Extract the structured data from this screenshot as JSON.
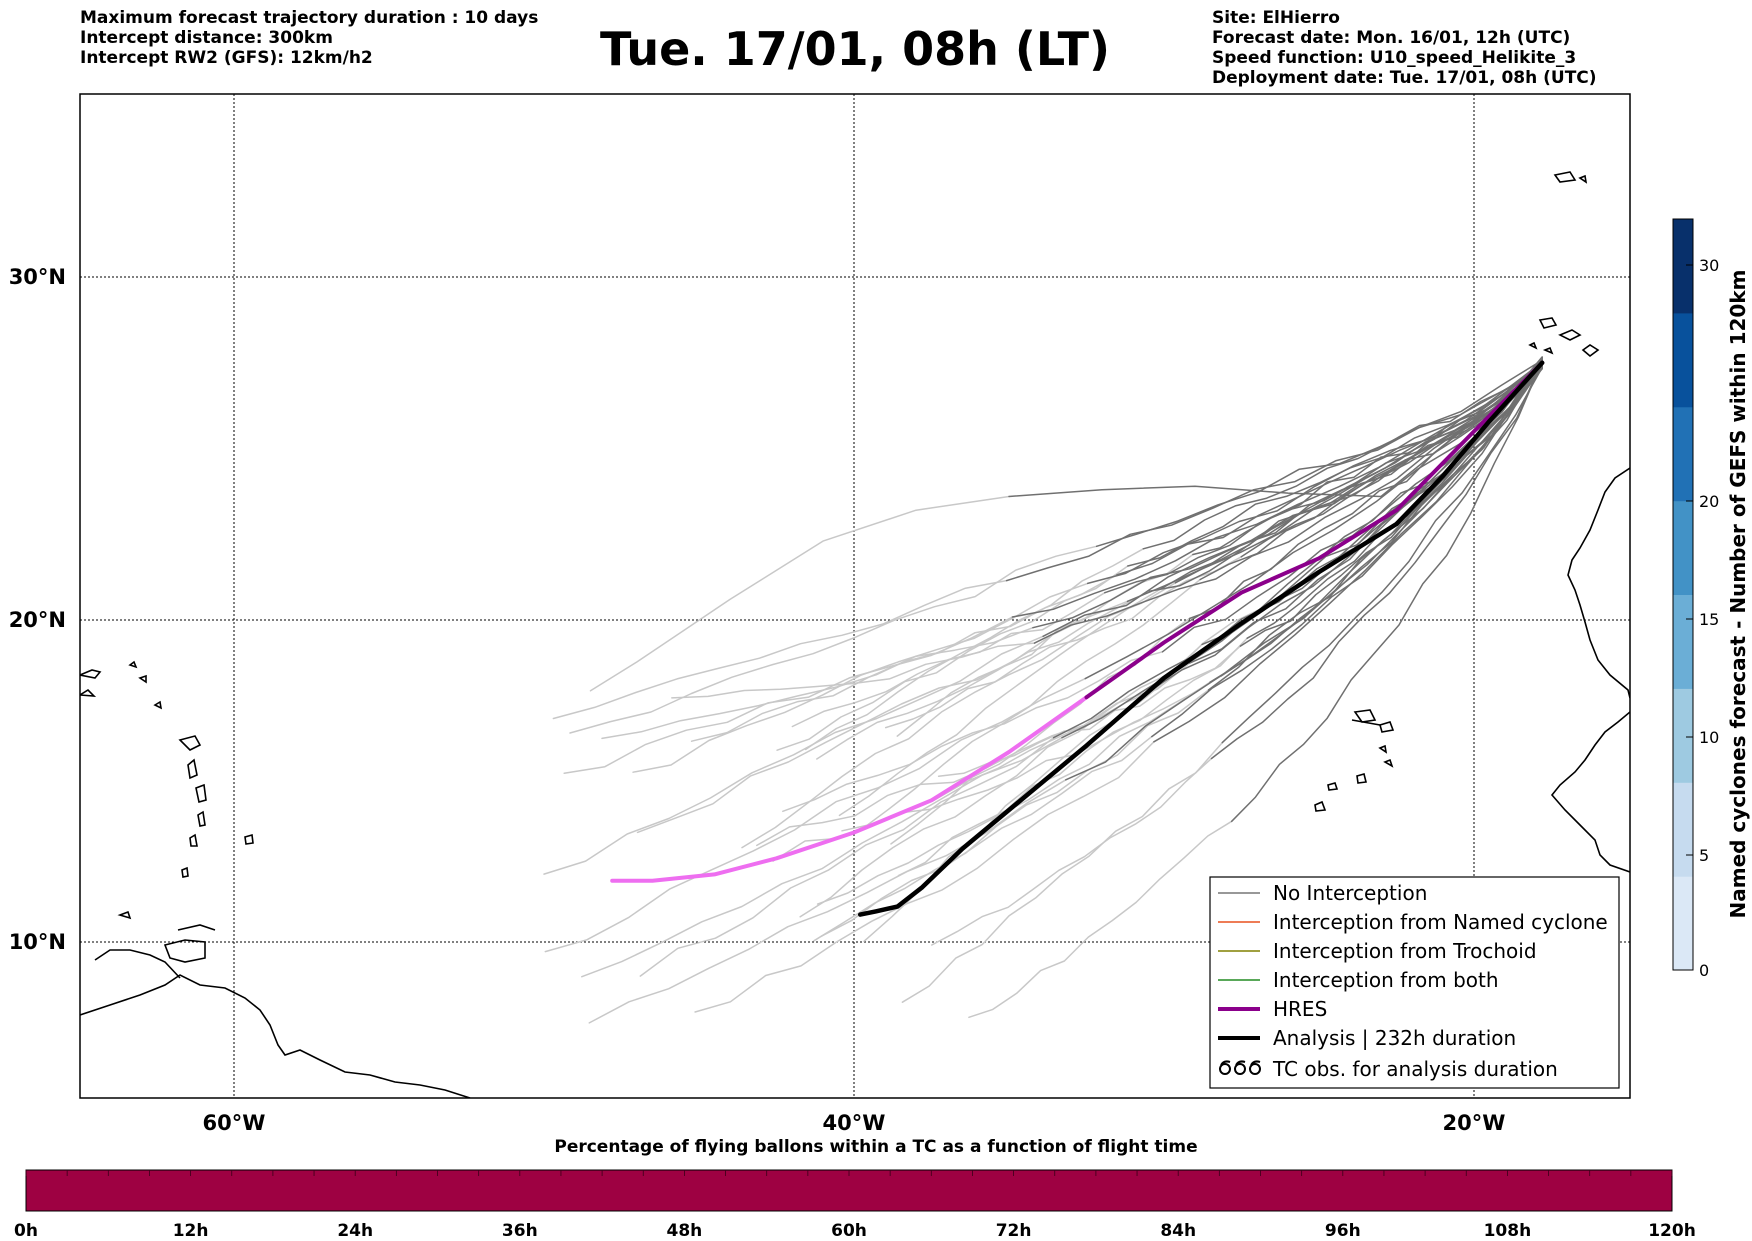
{
  "header": {
    "left_lines": [
      "Maximum forecast trajectory duration : 10 days",
      "Intercept distance: 300km",
      "Intercept RW2 (GFS):  12km/h2"
    ],
    "title": "Tue. 17/01, 08h (LT)",
    "right_lines": [
      "Site: ElHierro",
      "Forecast date: Mon. 16/01, 12h (UTC)",
      "Speed function: U10_speed_Helikite_3",
      "Deployment date: Tue. 17/01, 08h (UTC)"
    ]
  },
  "map": {
    "lon_ticks": [
      "60°W",
      "40°W",
      "20°W"
    ],
    "lat_ticks": [
      "30°N",
      "20°N",
      "10°N"
    ],
    "grid": "dotted"
  },
  "legend": {
    "placement": "lower-right",
    "items": [
      {
        "label": "No Interception",
        "color": "#777777",
        "style": "thin-line"
      },
      {
        "label": "Interception from Named cyclone",
        "color": "#e8501e",
        "style": "thin-line"
      },
      {
        "label": "Interception from Trochoid",
        "color": "#808000",
        "style": "thin-line"
      },
      {
        "label": "Interception from both",
        "color": "#228b22",
        "style": "thin-line"
      },
      {
        "label": "HRES",
        "color": "#8b008b",
        "style": "thick-line"
      },
      {
        "label": "Analysis | 232h duration",
        "color": "#000000",
        "style": "thick-line"
      },
      {
        "label": "TC obs. for analysis duration",
        "color": "#000000",
        "style": "cyclone-symbols"
      }
    ]
  },
  "right_colorbar": {
    "label": "Named cyclones forecast - Number of GEFS within 120km",
    "ticks": [
      "0",
      "5",
      "10",
      "15",
      "20",
      "30"
    ],
    "colors": [
      "#dbe8f6",
      "#c6dbef",
      "#9ecae1",
      "#6baed6",
      "#4292c6",
      "#2171b5",
      "#08519c",
      "#08306b"
    ]
  },
  "bottom_colorbar": {
    "title": "Percentage of flying ballons within a TC as a function of flight time",
    "ticks": [
      "0h",
      "12h",
      "24h",
      "36h",
      "48h",
      "60h",
      "72h",
      "84h",
      "96h",
      "108h",
      "120h"
    ],
    "color": "#9e0142"
  },
  "trajectories": {
    "analysis_duration_hours": 232,
    "colors": {
      "early": "#c8c8c8",
      "late": "#707070",
      "hres_early": "#ee6ef0",
      "hres_late": "#8b008b",
      "analysis": "#000000"
    },
    "hres": [
      [
        -17.8,
        27.5
      ],
      [
        -20,
        25.5
      ],
      [
        -22.5,
        23.2
      ],
      [
        -25,
        21.8
      ],
      [
        -27.5,
        20.8
      ],
      [
        -30,
        19.3
      ],
      [
        -32.5,
        17.6
      ],
      [
        -35,
        15.9
      ],
      [
        -37.5,
        14.4
      ],
      [
        -40,
        13.4
      ],
      [
        -42.5,
        12.6
      ],
      [
        -44.5,
        12.1
      ],
      [
        -46.5,
        11.9
      ],
      [
        -47.8,
        11.9
      ]
    ],
    "analysis": [
      [
        -17.8,
        27.5
      ],
      [
        -19.5,
        25.8
      ],
      [
        -21,
        24.2
      ],
      [
        -22.5,
        22.8
      ],
      [
        -25,
        21.4
      ],
      [
        -27.5,
        19.9
      ],
      [
        -30,
        18.2
      ],
      [
        -32.5,
        16.1
      ],
      [
        -34.5,
        14.5
      ],
      [
        -36.5,
        12.9
      ],
      [
        -37.8,
        11.7
      ],
      [
        -38.6,
        11.1
      ],
      [
        -39.3,
        10.95
      ],
      [
        -39.8,
        10.85
      ]
    ]
  }
}
